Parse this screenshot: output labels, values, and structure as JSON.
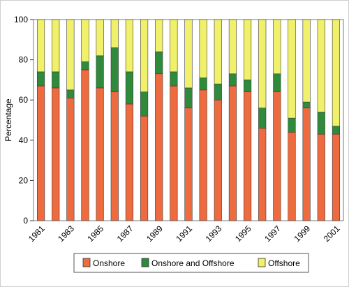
{
  "chart_data": {
    "type": "bar",
    "stacked": true,
    "percent_stacked": true,
    "title": "",
    "xlabel": "",
    "ylabel": "Percentage",
    "ylim": [
      0,
      100
    ],
    "yticks": [
      0,
      20,
      40,
      60,
      80,
      100
    ],
    "categories": [
      "1981",
      "1982",
      "1983",
      "1984",
      "1985",
      "1986",
      "1987",
      "1988",
      "1989",
      "1990",
      "1991",
      "1992",
      "1993",
      "1994",
      "1995",
      "1996",
      "1997",
      "1998",
      "1999",
      "2000",
      "2001"
    ],
    "xtick_labels_shown": [
      "1981",
      "1983",
      "1985",
      "1987",
      "1989",
      "1991",
      "1993",
      "1995",
      "1997",
      "1999",
      "2001"
    ],
    "series": [
      {
        "name": "Onshore",
        "color": "#ee6a3f",
        "values": [
          67,
          66,
          61,
          75,
          66,
          64,
          58,
          52,
          73,
          67,
          56,
          65,
          60,
          67,
          64,
          46,
          64,
          44,
          56,
          43,
          43
        ]
      },
      {
        "name": "Onshore and Offshore",
        "color": "#2f8a3c",
        "values": [
          7,
          8,
          4,
          4,
          16,
          22,
          16,
          12,
          11,
          7,
          10,
          6,
          8,
          6,
          6,
          10,
          9,
          7,
          3,
          11,
          4
        ]
      },
      {
        "name": "Offshore",
        "color": "#f0f06a",
        "values": [
          26,
          26,
          35,
          21,
          18,
          14,
          26,
          36,
          16,
          26,
          34,
          29,
          32,
          27,
          30,
          44,
          27,
          49,
          41,
          46,
          53
        ]
      }
    ],
    "grid": false,
    "legend_position": "bottom"
  }
}
